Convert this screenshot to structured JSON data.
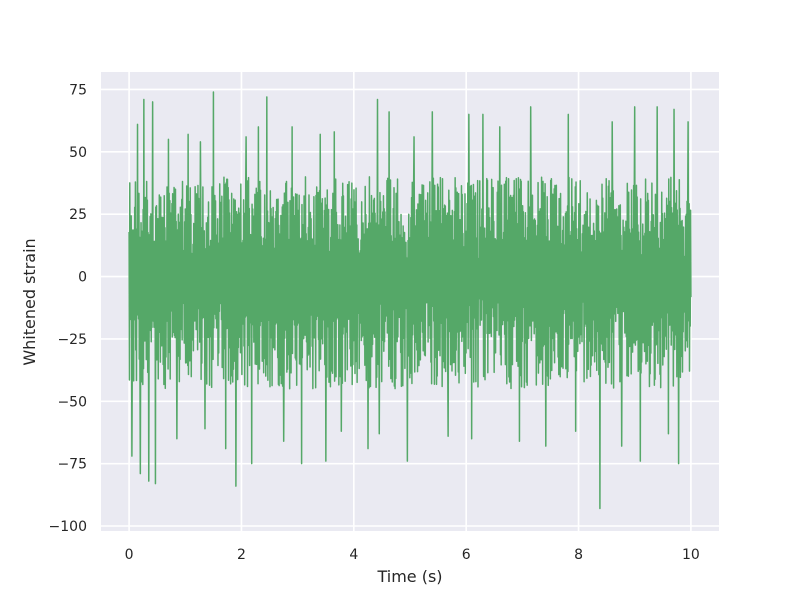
{
  "chart_data": {
    "type": "line",
    "title": "",
    "xlabel": "Time (s)",
    "ylabel": "Whitened strain",
    "xlim": [
      -0.5,
      10.5
    ],
    "ylim": [
      -102,
      82
    ],
    "xticks": [
      0,
      2,
      4,
      6,
      8,
      10
    ],
    "xtick_labels": [
      "0",
      "2",
      "4",
      "6",
      "8",
      "10"
    ],
    "yticks": [
      -100,
      -75,
      -50,
      -25,
      0,
      25,
      50,
      75
    ],
    "ytick_labels": [
      "−100",
      "−75",
      "−50",
      "−25",
      "0",
      "25",
      "50",
      "75"
    ],
    "grid": true,
    "legend": "none",
    "style": "seaborn darkgrid",
    "colors": {
      "background": "#eaeaf2",
      "grid": "#ffffff",
      "series": "#55a868"
    },
    "series": [
      {
        "x_start": 0,
        "x_end": 10,
        "typical_range": [
          -45,
          40
        ],
        "peaks": [
          {
            "x": 0.05,
            "y": -72
          },
          {
            "x": 0.15,
            "y": 61
          },
          {
            "x": 0.2,
            "y": -79
          },
          {
            "x": 0.26,
            "y": 71
          },
          {
            "x": 0.35,
            "y": -82
          },
          {
            "x": 0.42,
            "y": 70
          },
          {
            "x": 0.47,
            "y": -83
          },
          {
            "x": 0.7,
            "y": 55
          },
          {
            "x": 0.85,
            "y": -65
          },
          {
            "x": 1.05,
            "y": 57
          },
          {
            "x": 1.27,
            "y": 54
          },
          {
            "x": 1.35,
            "y": -61
          },
          {
            "x": 1.5,
            "y": 74
          },
          {
            "x": 1.72,
            "y": -69
          },
          {
            "x": 1.9,
            "y": -84
          },
          {
            "x": 2.08,
            "y": 56
          },
          {
            "x": 2.18,
            "y": -75
          },
          {
            "x": 2.3,
            "y": 60
          },
          {
            "x": 2.45,
            "y": 72
          },
          {
            "x": 2.75,
            "y": -66
          },
          {
            "x": 2.9,
            "y": 60
          },
          {
            "x": 3.07,
            "y": -75
          },
          {
            "x": 3.4,
            "y": 57
          },
          {
            "x": 3.5,
            "y": -74
          },
          {
            "x": 3.65,
            "y": 58
          },
          {
            "x": 3.78,
            "y": -62
          },
          {
            "x": 4.25,
            "y": -69
          },
          {
            "x": 4.42,
            "y": 71
          },
          {
            "x": 4.45,
            "y": -63
          },
          {
            "x": 4.63,
            "y": 66
          },
          {
            "x": 4.95,
            "y": -74
          },
          {
            "x": 5.07,
            "y": 56
          },
          {
            "x": 5.4,
            "y": 66
          },
          {
            "x": 5.68,
            "y": -64
          },
          {
            "x": 6.05,
            "y": 65
          },
          {
            "x": 6.1,
            "y": -65
          },
          {
            "x": 6.3,
            "y": 65
          },
          {
            "x": 6.6,
            "y": 60
          },
          {
            "x": 6.95,
            "y": -66
          },
          {
            "x": 7.15,
            "y": 68
          },
          {
            "x": 7.42,
            "y": -68
          },
          {
            "x": 7.82,
            "y": 65
          },
          {
            "x": 7.95,
            "y": -62
          },
          {
            "x": 8.38,
            "y": -93
          },
          {
            "x": 8.6,
            "y": 62
          },
          {
            "x": 8.77,
            "y": -68
          },
          {
            "x": 9.0,
            "y": 68
          },
          {
            "x": 9.1,
            "y": -74
          },
          {
            "x": 9.4,
            "y": 68
          },
          {
            "x": 9.6,
            "y": -63
          },
          {
            "x": 9.7,
            "y": 67
          },
          {
            "x": 9.78,
            "y": -75
          },
          {
            "x": 9.95,
            "y": 62
          }
        ]
      }
    ]
  }
}
